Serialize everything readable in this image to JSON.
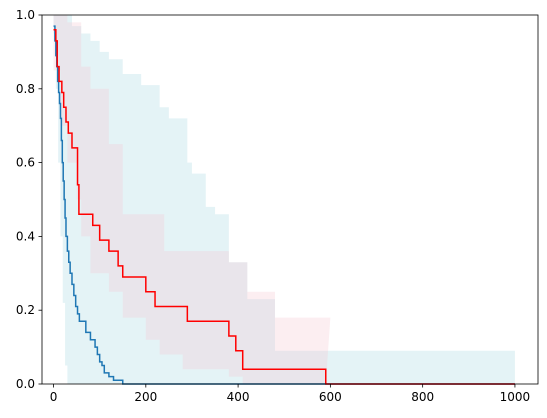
{
  "chart_data": {
    "type": "line",
    "title": "",
    "xlabel": "",
    "ylabel": "",
    "xlim": [
      -25,
      1050
    ],
    "ylim": [
      0,
      1.0
    ],
    "grid": false,
    "x_ticks": [
      0,
      200,
      400,
      600,
      800,
      1000
    ],
    "y_ticks": [
      0.0,
      0.2,
      0.4,
      0.6,
      0.8,
      1.0
    ],
    "x_tick_labels": [
      "0",
      "200",
      "400",
      "600",
      "800",
      "1000"
    ],
    "y_tick_labels": [
      "0.0",
      "0.2",
      "0.4",
      "0.6",
      "0.8",
      "1.0"
    ],
    "series": [
      {
        "color": "#1f77b4",
        "band_color": "#a6d8e2",
        "step_x": [
          0,
          3,
          5,
          7,
          9,
          11,
          13,
          15,
          17,
          19,
          21,
          23,
          25,
          27,
          30,
          33,
          36,
          40,
          44,
          48,
          52,
          56,
          62,
          70,
          80,
          90,
          95,
          100,
          105,
          110,
          120,
          130,
          150,
          1000
        ],
        "step_y": [
          0.97,
          0.93,
          0.89,
          0.86,
          0.82,
          0.79,
          0.76,
          0.72,
          0.66,
          0.6,
          0.55,
          0.5,
          0.45,
          0.4,
          0.36,
          0.33,
          0.3,
          0.27,
          0.24,
          0.21,
          0.19,
          0.17,
          0.17,
          0.14,
          0.12,
          0.1,
          0.08,
          0.06,
          0.05,
          0.03,
          0.02,
          0.01,
          0.0,
          0.0
        ],
        "upper_x": [
          0,
          25,
          40,
          60,
          80,
          100,
          120,
          150,
          190,
          230,
          250,
          260,
          270,
          290,
          300,
          330,
          350,
          360,
          380,
          420,
          480,
          500,
          1000
        ],
        "upper_y": [
          1.0,
          1.0,
          0.97,
          0.95,
          0.93,
          0.9,
          0.88,
          0.84,
          0.81,
          0.75,
          0.72,
          0.72,
          0.72,
          0.6,
          0.57,
          0.48,
          0.46,
          0.46,
          0.33,
          0.23,
          0.09,
          0.09,
          0.09
        ],
        "lower_x": [
          0,
          5,
          10,
          15,
          20,
          25,
          30,
          50,
          1000
        ],
        "lower_y": [
          0.95,
          0.8,
          0.6,
          0.4,
          0.22,
          0.05,
          0.0,
          0.0,
          0.0
        ]
      },
      {
        "color": "#ff0000",
        "band_color": "#f5c8d2",
        "step_x": [
          0,
          5,
          8,
          12,
          18,
          22,
          27,
          32,
          40,
          52,
          55,
          85,
          100,
          120,
          140,
          150,
          180,
          200,
          220,
          240,
          280,
          290,
          380,
          385,
          395,
          400,
          410,
          590,
          1000
        ],
        "step_y": [
          0.96,
          0.93,
          0.86,
          0.82,
          0.79,
          0.75,
          0.71,
          0.68,
          0.64,
          0.54,
          0.46,
          0.43,
          0.39,
          0.36,
          0.32,
          0.29,
          0.29,
          0.25,
          0.21,
          0.21,
          0.21,
          0.17,
          0.13,
          0.13,
          0.09,
          0.09,
          0.04,
          0.0,
          0.0
        ],
        "upper_x": [
          0,
          15,
          30,
          50,
          60,
          80,
          120,
          150,
          200,
          240,
          280,
          300,
          380,
          420,
          480,
          600
        ],
        "upper_y": [
          1.0,
          1.0,
          0.98,
          0.98,
          0.86,
          0.8,
          0.65,
          0.46,
          0.46,
          0.36,
          0.36,
          0.36,
          0.33,
          0.25,
          0.18,
          0.18
        ],
        "lower_x": [
          0,
          15,
          30,
          50,
          60,
          80,
          120,
          150,
          200,
          230,
          280,
          380,
          410,
          590
        ],
        "lower_y": [
          0.85,
          0.7,
          0.6,
          0.5,
          0.4,
          0.3,
          0.25,
          0.18,
          0.12,
          0.08,
          0.04,
          0.02,
          0.0,
          0.0
        ]
      }
    ]
  }
}
